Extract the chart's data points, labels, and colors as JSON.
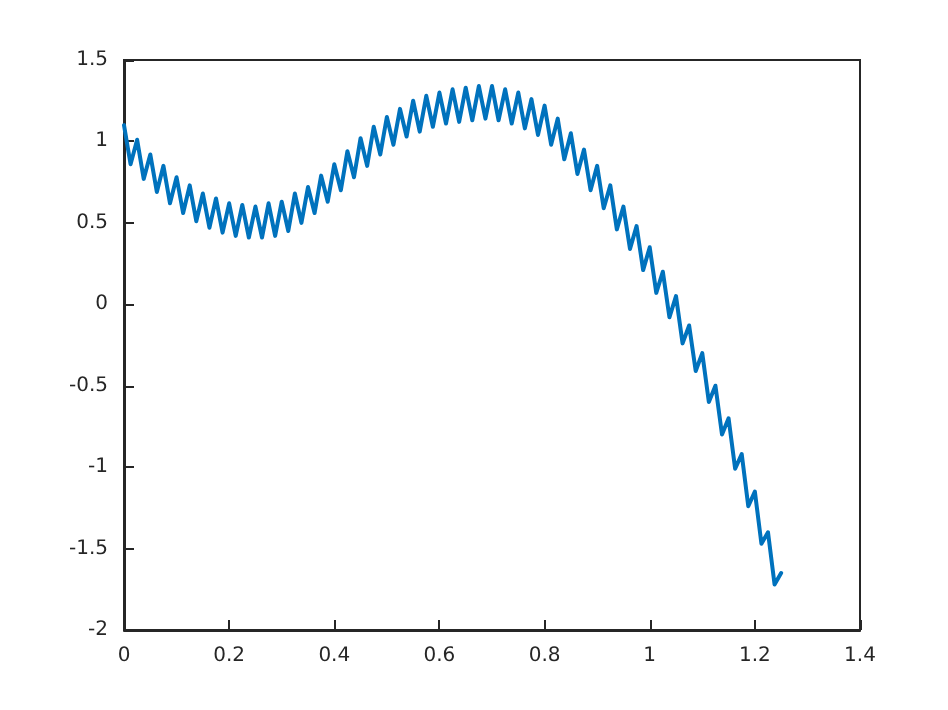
{
  "chart_data": {
    "type": "line",
    "xlim": [
      0,
      1.4
    ],
    "xticks": [
      0,
      0.2,
      0.4,
      0.6,
      0.8,
      1,
      1.2,
      1.4
    ],
    "ylim": [
      -2,
      1.5
    ],
    "yticks": [
      -2,
      -1.5,
      -1,
      -0.5,
      0,
      0.5,
      1,
      1.5
    ],
    "grid": false,
    "marker": "none",
    "line_style": "solid",
    "x": [
      0,
      0.0125,
      0.025,
      0.0375,
      0.05,
      0.0625,
      0.075,
      0.0875,
      0.1,
      0.1125,
      0.125,
      0.1375,
      0.15,
      0.1625,
      0.175,
      0.1875,
      0.2,
      0.2125,
      0.225,
      0.2375,
      0.25,
      0.2625,
      0.275,
      0.2875,
      0.3,
      0.3125,
      0.325,
      0.3375,
      0.35,
      0.3625,
      0.375,
      0.3875,
      0.4,
      0.4125,
      0.425,
      0.4375,
      0.45,
      0.4625,
      0.475,
      0.4875,
      0.5,
      0.5125,
      0.525,
      0.5375,
      0.55,
      0.5625,
      0.575,
      0.5875,
      0.6,
      0.6125,
      0.625,
      0.6375,
      0.65,
      0.6625,
      0.675,
      0.6875,
      0.7,
      0.7125,
      0.725,
      0.7375,
      0.75,
      0.7625,
      0.775,
      0.7875,
      0.8,
      0.8125,
      0.825,
      0.8375,
      0.85,
      0.8625,
      0.875,
      0.8875,
      0.9,
      0.9125,
      0.925,
      0.9375,
      0.95,
      0.9625,
      0.975,
      0.9875,
      1,
      1.0125,
      1.025,
      1.0375,
      1.05,
      1.0625,
      1.075,
      1.0875,
      1.1,
      1.1125,
      1.125,
      1.1375,
      1.15,
      1.1625,
      1.175,
      1.1875,
      1.2,
      1.2125,
      1.225,
      1.2375,
      1.25
    ],
    "series": [
      {
        "color": "#0072bd",
        "values": [
          1.1,
          0.86,
          1.01,
          0.77,
          0.92,
          0.69,
          0.85,
          0.62,
          0.78,
          0.56,
          0.73,
          0.51,
          0.68,
          0.47,
          0.65,
          0.44,
          0.62,
          0.42,
          0.61,
          0.41,
          0.6,
          0.41,
          0.62,
          0.42,
          0.63,
          0.45,
          0.68,
          0.5,
          0.72,
          0.56,
          0.79,
          0.63,
          0.86,
          0.7,
          0.94,
          0.78,
          1.02,
          0.85,
          1.09,
          0.92,
          1.15,
          0.98,
          1.2,
          1.03,
          1.25,
          1.06,
          1.28,
          1.09,
          1.3,
          1.11,
          1.32,
          1.12,
          1.33,
          1.13,
          1.34,
          1.14,
          1.34,
          1.13,
          1.32,
          1.11,
          1.3,
          1.08,
          1.26,
          1.04,
          1.22,
          0.98,
          1.14,
          0.89,
          1.05,
          0.8,
          0.95,
          0.7,
          0.85,
          0.59,
          0.73,
          0.46,
          0.6,
          0.34,
          0.48,
          0.21,
          0.35,
          0.07,
          0.2,
          -0.08,
          0.05,
          -0.24,
          -0.13,
          -0.41,
          -0.3,
          -0.6,
          -0.5,
          -0.8,
          -0.7,
          -1.01,
          -0.92,
          -1.24,
          -1.15,
          -1.47,
          -1.4,
          -1.72,
          -1.65
        ]
      }
    ]
  }
}
